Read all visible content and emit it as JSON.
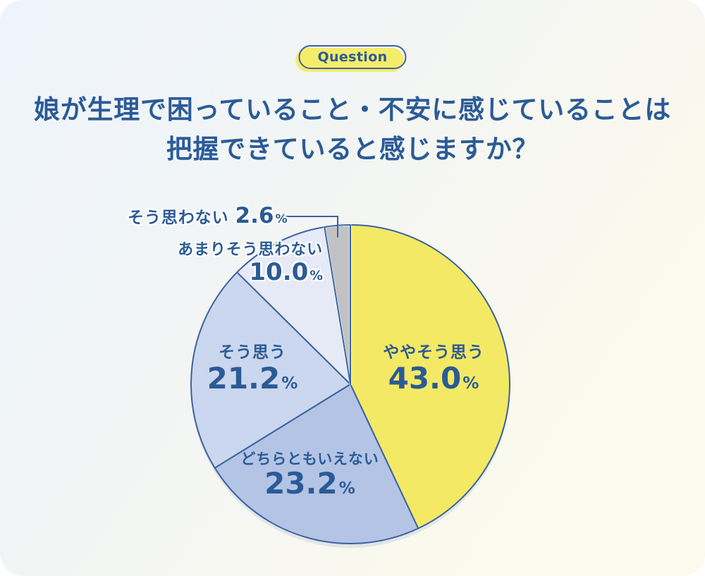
{
  "badge": {
    "label": "Question"
  },
  "title": {
    "line1": "娘が生理で困っていること・不安に感じていることは",
    "line2": "把握できていると感じますか？"
  },
  "chart_data": {
    "type": "pie",
    "title": "娘が生理で困っていること・不安に感じていることは把握できていると感じますか？",
    "start_angle_deg": 0,
    "direction": "clockwise",
    "total": 100,
    "legend": "none",
    "label_style": "inside-and-callout",
    "slices": [
      {
        "label": "ややそう思う",
        "value": 43.0,
        "value_label": "43.0",
        "unit": "%",
        "color": "#F4E964"
      },
      {
        "label": "どちらともいえない",
        "value": 23.2,
        "value_label": "23.2",
        "unit": "%",
        "color": "#B4C4E5"
      },
      {
        "label": "そう思う",
        "value": 21.2,
        "value_label": "21.2",
        "unit": "%",
        "color": "#CBD7EE"
      },
      {
        "label": "あまりそう思わない",
        "value": 10.0,
        "value_label": "10.0",
        "unit": "%",
        "color": "#E6EAF6"
      },
      {
        "label": "そう思わない",
        "value": 2.6,
        "value_label": "2.6",
        "unit": "%",
        "color": "#C2C2C4"
      }
    ]
  },
  "colors": {
    "text": "#2B5B97",
    "outline": "#3A63A0",
    "badge_fill": "#F6EC6B",
    "background_top_left": "#EEF4FC",
    "background_bottom_right": "#FCFAEC",
    "slice_shadow": "#CBD4DF",
    "callout_gap": "#FFFFFF"
  }
}
